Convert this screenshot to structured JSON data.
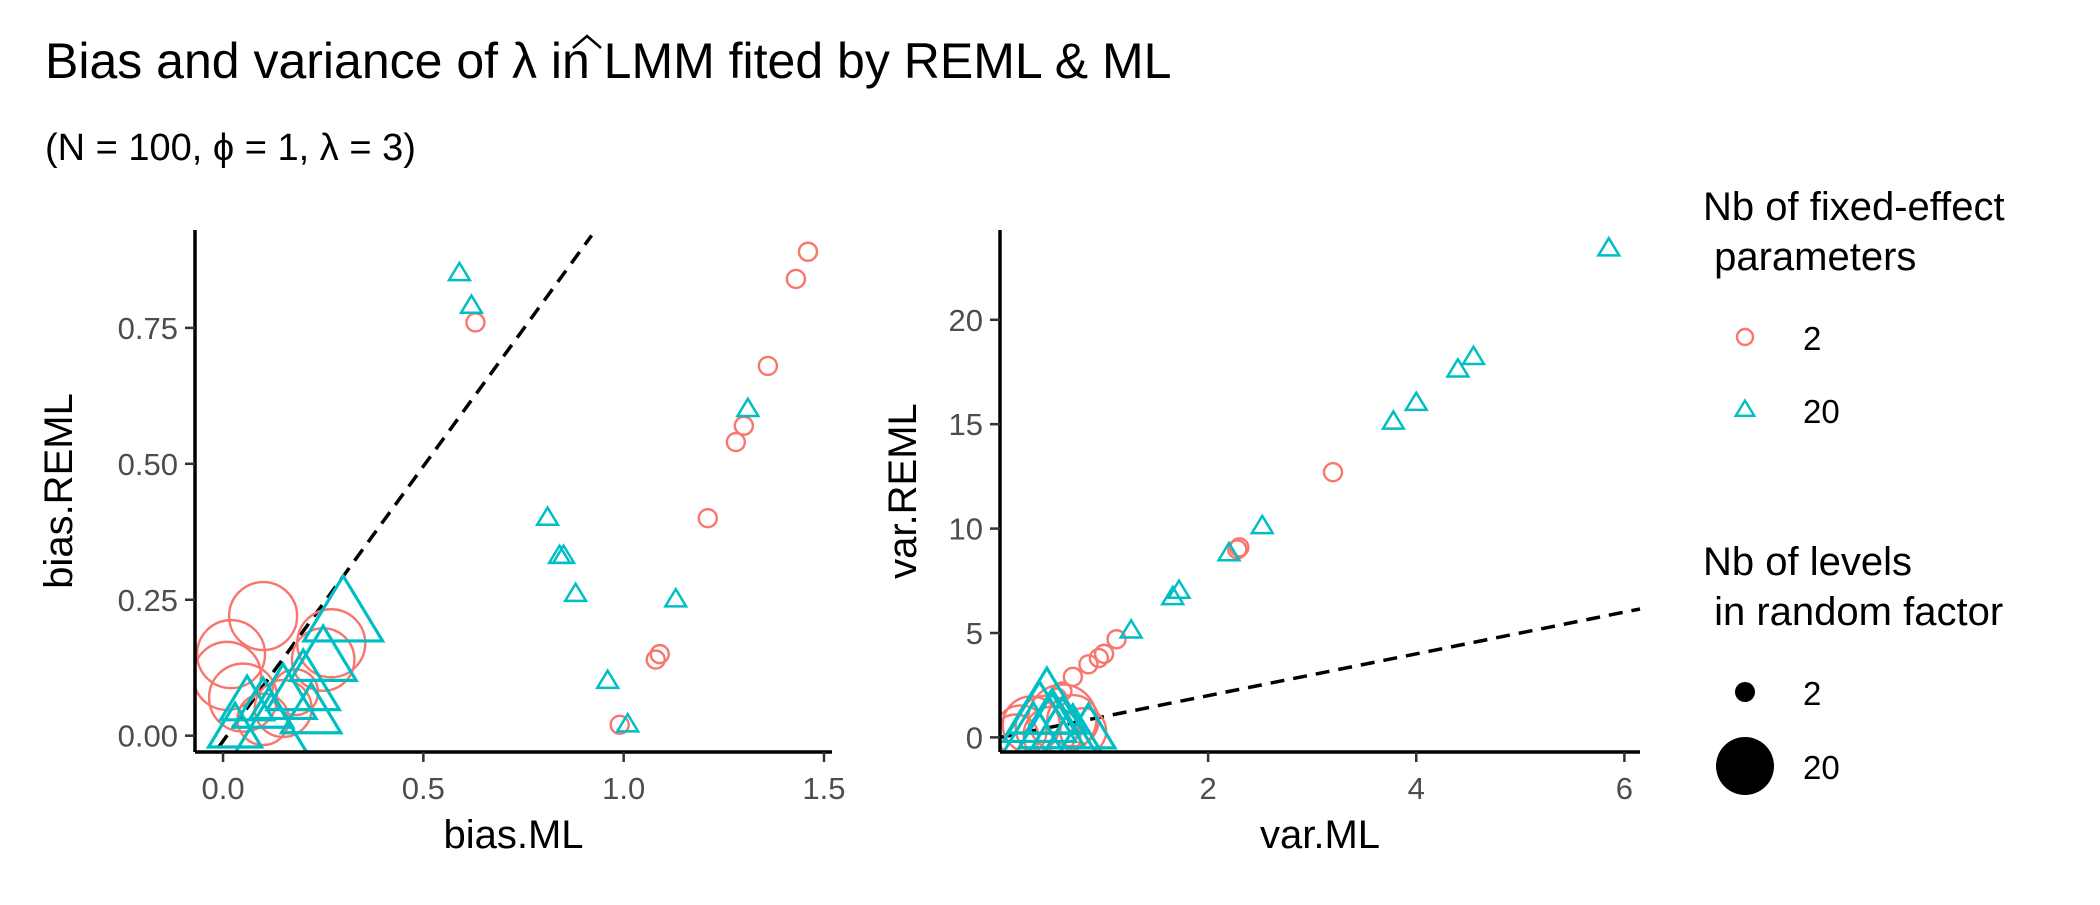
{
  "header": {
    "title_pre": "Bias and variance of ",
    "title_lambda": "λ",
    "title_post": " in LMM fited by REML & ML",
    "subtitle_pre": "(N = 100, ",
    "subtitle_phi": "ϕ",
    "subtitle_mid": " = 1,  ",
    "subtitle_lambda": "λ",
    "subtitle_post": " = 3)"
  },
  "colors": {
    "series_2": "#F8766D",
    "series_20": "#00BFC4",
    "axis": "#000000",
    "tick_text": "#4D4D4D"
  },
  "legend": {
    "shape_title_line1": "Nb of fixed-effect",
    "shape_title_line2": " parameters",
    "shape_items": [
      {
        "label": "2",
        "shape": "circle"
      },
      {
        "label": "20",
        "shape": "triangle"
      }
    ],
    "size_title_line1": "Nb of levels",
    "size_title_line2": " in random factor",
    "size_items": [
      {
        "label": "2",
        "size": 2
      },
      {
        "label": "20",
        "size": 20
      }
    ]
  },
  "chart_data": [
    {
      "type": "scatter",
      "xlabel": "bias.ML",
      "ylabel": "bias.REML",
      "xlim": [
        -0.07,
        1.52
      ],
      "ylim": [
        -0.03,
        0.93
      ],
      "xticks": [
        0.0,
        0.5,
        1.0,
        1.5
      ],
      "xtick_labels": [
        "0.0",
        "0.5",
        "1.0",
        "1.5"
      ],
      "yticks": [
        0.0,
        0.25,
        0.5,
        0.75
      ],
      "ytick_labels": [
        "0.00",
        "0.25",
        "0.50",
        "0.75"
      ],
      "reference_line": {
        "style": "dashed",
        "from": [
          -0.01,
          -0.02
        ],
        "to": [
          0.92,
          0.92
        ]
      },
      "grid": false,
      "series": [
        {
          "name": "2",
          "shape": "circle",
          "points": [
            [
              1.46,
              0.89,
              2
            ],
            [
              1.43,
              0.84,
              2
            ],
            [
              1.36,
              0.68,
              2
            ],
            [
              1.3,
              0.57,
              2
            ],
            [
              1.28,
              0.54,
              2
            ],
            [
              1.21,
              0.4,
              2
            ],
            [
              1.09,
              0.15,
              2
            ],
            [
              1.08,
              0.14,
              2
            ],
            [
              0.99,
              0.02,
              2
            ],
            [
              0.63,
              0.76,
              2
            ],
            [
              0.1,
              0.22,
              20
            ],
            [
              0.02,
              0.15,
              20
            ],
            [
              0.01,
              0.11,
              20
            ],
            [
              0.05,
              0.07,
              20
            ],
            [
              0.27,
              0.17,
              20
            ],
            [
              0.25,
              0.14,
              18
            ],
            [
              0.15,
              0.05,
              16
            ],
            [
              0.1,
              0.03,
              14
            ],
            [
              0.18,
              0.08,
              12
            ]
          ]
        },
        {
          "name": "20",
          "shape": "triangle",
          "points": [
            [
              0.59,
              0.85,
              2
            ],
            [
              0.62,
              0.79,
              2
            ],
            [
              1.31,
              0.6,
              2
            ],
            [
              0.81,
              0.4,
              2
            ],
            [
              0.84,
              0.33,
              2
            ],
            [
              0.85,
              0.33,
              2
            ],
            [
              0.88,
              0.26,
              2
            ],
            [
              1.13,
              0.25,
              2
            ],
            [
              0.96,
              0.1,
              2
            ],
            [
              1.01,
              0.02,
              2
            ],
            [
              0.3,
              0.22,
              20
            ],
            [
              0.25,
              0.14,
              16
            ],
            [
              0.2,
              0.09,
              18
            ],
            [
              0.15,
              0.07,
              16
            ],
            [
              0.1,
              0.05,
              14
            ],
            [
              0.22,
              0.04,
              14
            ],
            [
              0.06,
              0.06,
              12
            ],
            [
              0.03,
              0.01,
              12
            ],
            [
              0.12,
              0.01,
              18
            ]
          ]
        }
      ]
    },
    {
      "type": "scatter",
      "xlabel": "var.ML",
      "ylabel": "var.REML",
      "xlim": [
        0.0,
        6.15
      ],
      "ylim": [
        -0.7,
        24.3
      ],
      "xticks": [
        2,
        4,
        6
      ],
      "xtick_labels": [
        "2",
        "4",
        "6"
      ],
      "yticks": [
        0,
        5,
        10,
        15,
        20
      ],
      "ytick_labels": [
        "0",
        "5",
        "10",
        "15",
        "20"
      ],
      "reference_line": {
        "style": "dashed",
        "from": [
          0.0,
          0.0
        ],
        "to": [
          6.15,
          6.15
        ]
      },
      "grid": false,
      "series": [
        {
          "name": "2",
          "shape": "circle",
          "points": [
            [
              3.2,
              12.7,
              2
            ],
            [
              2.3,
              9.1,
              2
            ],
            [
              2.28,
              9.0,
              2
            ],
            [
              1.12,
              4.7,
              2
            ],
            [
              0.95,
              3.8,
              2
            ],
            [
              1.0,
              4.0,
              2
            ],
            [
              0.85,
              3.5,
              2
            ],
            [
              0.7,
              2.9,
              2
            ],
            [
              0.6,
              2.2,
              2
            ],
            [
              0.55,
              1.9,
              2
            ],
            [
              0.6,
              0.9,
              20
            ],
            [
              0.45,
              0.5,
              18
            ],
            [
              0.3,
              0.6,
              16
            ],
            [
              0.2,
              0.3,
              14
            ],
            [
              0.8,
              0.3,
              12
            ],
            [
              0.5,
              0.1,
              16
            ],
            [
              0.15,
              0.0,
              12
            ],
            [
              0.7,
              0.8,
              14
            ]
          ]
        },
        {
          "name": "20",
          "shape": "triangle",
          "points": [
            [
              5.85,
              23.4,
              2
            ],
            [
              4.55,
              18.2,
              2
            ],
            [
              4.4,
              17.6,
              2
            ],
            [
              4.0,
              16.0,
              2
            ],
            [
              3.78,
              15.1,
              2
            ],
            [
              2.52,
              10.1,
              2
            ],
            [
              2.2,
              8.8,
              2
            ],
            [
              1.72,
              7.0,
              2
            ],
            [
              1.66,
              6.7,
              2
            ],
            [
              1.26,
              5.1,
              2
            ],
            [
              0.45,
              1.4,
              20
            ],
            [
              0.38,
              0.9,
              18
            ],
            [
              0.5,
              0.5,
              16
            ],
            [
              0.6,
              0.3,
              16
            ],
            [
              0.32,
              0.2,
              14
            ],
            [
              0.7,
              0.1,
              14
            ],
            [
              0.5,
              1.0,
              12
            ],
            [
              0.85,
              0.3,
              12
            ]
          ]
        }
      ]
    }
  ]
}
